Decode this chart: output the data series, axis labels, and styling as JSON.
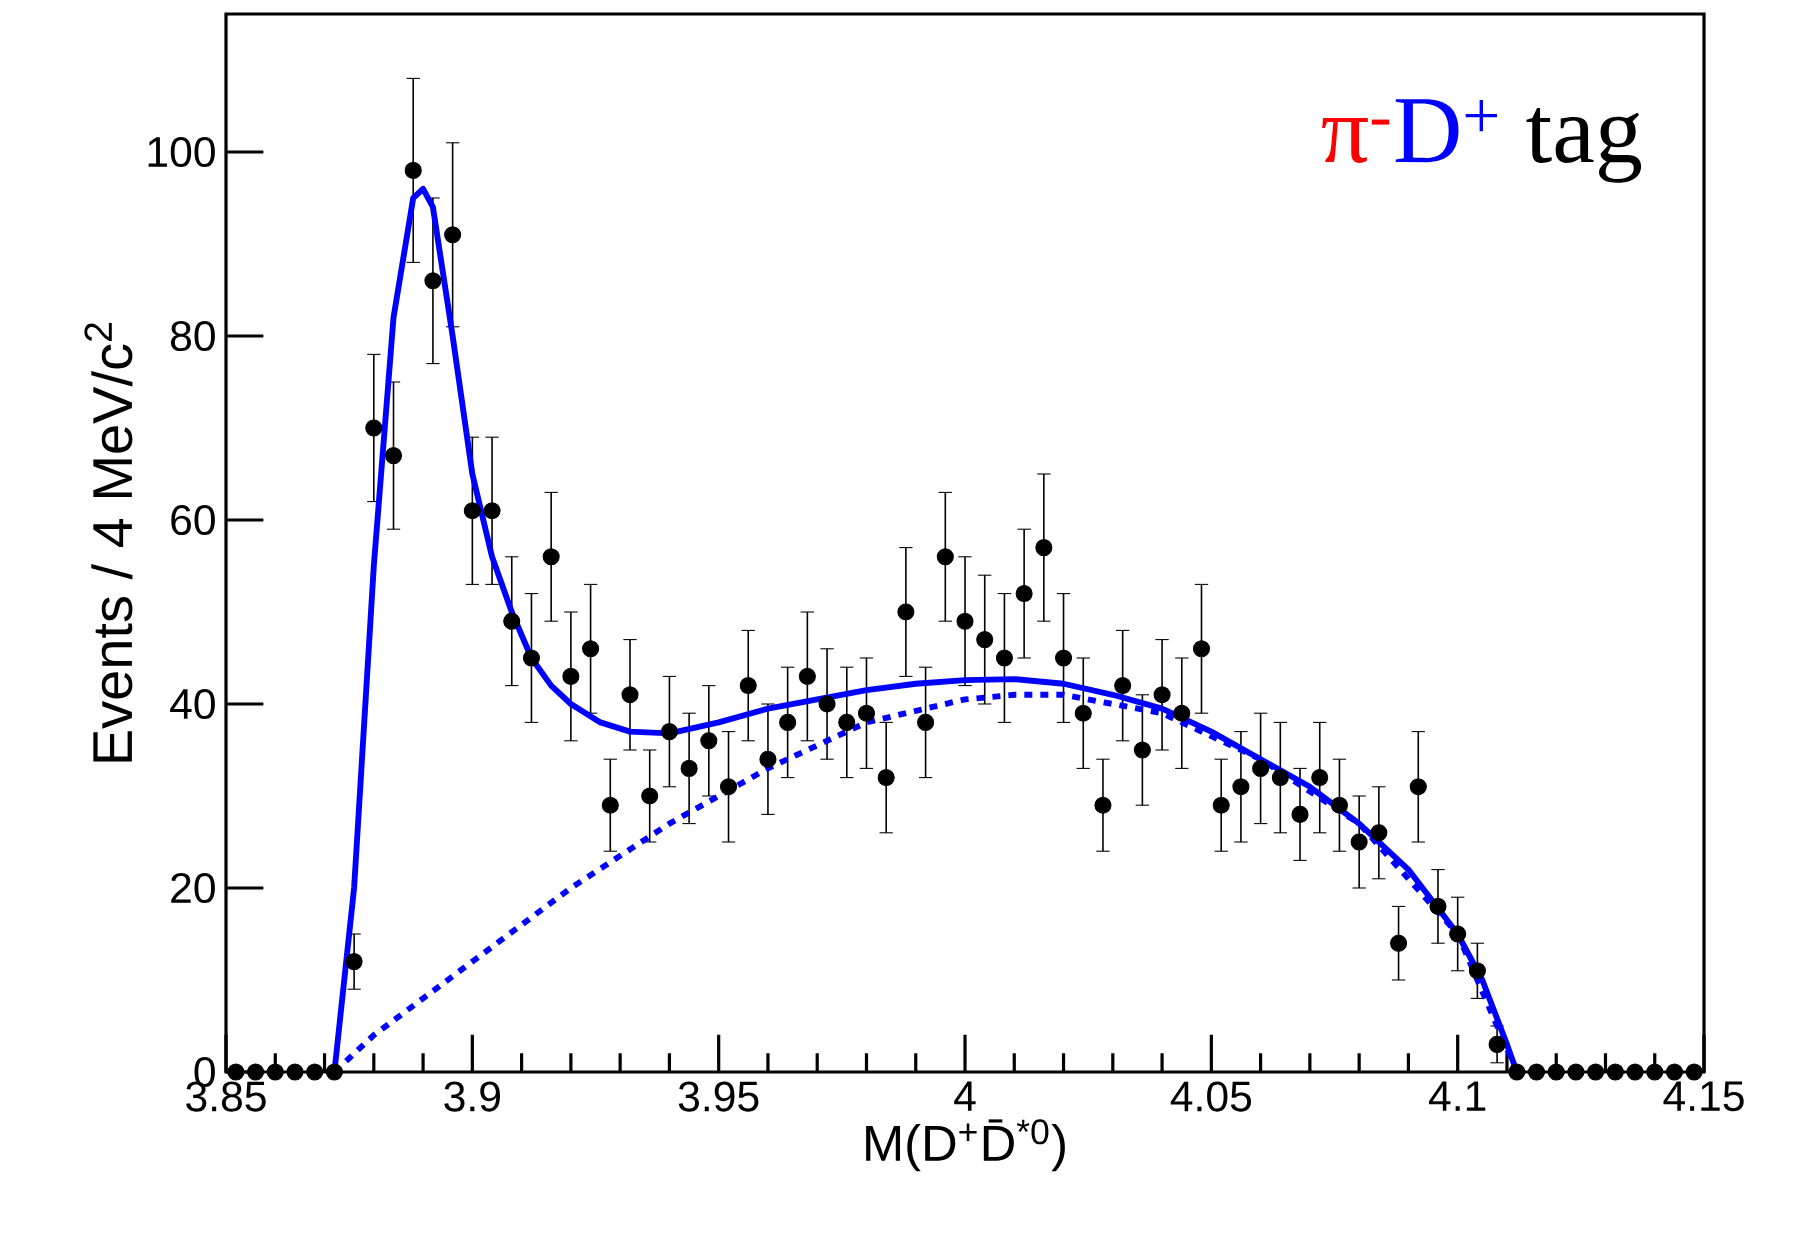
{
  "chart_data": {
    "type": "scatter",
    "xlabel": "M(D$^{+}$D̄$^{*0}$)",
    "ylabel": "Events / 4 MeV/c$^{2}$",
    "annotations": [
      "π$^{-}$",
      "D$^{+}$",
      " tag"
    ],
    "xlim": [
      3.85,
      4.15
    ],
    "ylim": [
      0,
      115
    ],
    "xticks": [
      3.85,
      3.9,
      3.95,
      4,
      4.05,
      4.1,
      4.15
    ],
    "yticks": [
      0,
      20,
      40,
      60,
      80,
      100
    ],
    "series": [
      {
        "type": "scatter",
        "marker": "circle",
        "color": "#000000",
        "x": [
          3.852,
          3.856,
          3.86,
          3.864,
          3.868,
          3.872,
          3.876,
          3.88,
          3.884,
          3.888,
          3.892,
          3.896,
          3.9,
          3.904,
          3.908,
          3.912,
          3.916,
          3.92,
          3.924,
          3.928,
          3.932,
          3.936,
          3.94,
          3.944,
          3.948,
          3.952,
          3.956,
          3.96,
          3.964,
          3.968,
          3.972,
          3.976,
          3.98,
          3.984,
          3.988,
          3.992,
          3.996,
          4.0,
          4.004,
          4.008,
          4.012,
          4.016,
          4.02,
          4.024,
          4.028,
          4.032,
          4.036,
          4.04,
          4.044,
          4.048,
          4.052,
          4.056,
          4.06,
          4.064,
          4.068,
          4.072,
          4.076,
          4.08,
          4.084,
          4.088,
          4.092,
          4.096,
          4.1,
          4.104,
          4.108,
          4.112,
          4.116,
          4.12,
          4.124,
          4.128,
          4.132,
          4.136,
          4.14,
          4.144,
          4.148
        ],
        "values": [
          0,
          0,
          0,
          0,
          0,
          0,
          12,
          70,
          67,
          98,
          86,
          91,
          61,
          61,
          49,
          45,
          56,
          43,
          46,
          29,
          41,
          30,
          37,
          33,
          36,
          31,
          42,
          34,
          38,
          43,
          40,
          38,
          39,
          32,
          50,
          38,
          56,
          49,
          47,
          45,
          52,
          57,
          45,
          39,
          29,
          42,
          35,
          41,
          39,
          46,
          29,
          31,
          33,
          32,
          28,
          32,
          29,
          25,
          26,
          14,
          31,
          18,
          15,
          11,
          3,
          0,
          0,
          0,
          0,
          0,
          0,
          0,
          0,
          0,
          0
        ],
        "errors": [
          null,
          null,
          null,
          null,
          null,
          null,
          3,
          8,
          8,
          10,
          9,
          10,
          8,
          8,
          7,
          7,
          7,
          7,
          7,
          5,
          6,
          5,
          6,
          6,
          6,
          6,
          6,
          6,
          6,
          7,
          6,
          6,
          6,
          6,
          7,
          6,
          7,
          7,
          7,
          7,
          7,
          8,
          7,
          6,
          5,
          6,
          6,
          6,
          6,
          7,
          5,
          6,
          6,
          6,
          5,
          6,
          5,
          5,
          5,
          4,
          6,
          4,
          4,
          3,
          2,
          null,
          null,
          null,
          null,
          null,
          null,
          null,
          null,
          null,
          null
        ]
      },
      {
        "type": "line",
        "marker": "none",
        "line_style": "solid",
        "color": "#0000ff",
        "x": [
          3.872,
          3.876,
          3.88,
          3.884,
          3.888,
          3.89,
          3.892,
          3.896,
          3.9,
          3.904,
          3.908,
          3.912,
          3.916,
          3.92,
          3.926,
          3.932,
          3.94,
          3.95,
          3.96,
          3.97,
          3.98,
          3.99,
          4.0,
          4.01,
          4.02,
          4.03,
          4.04,
          4.05,
          4.06,
          4.07,
          4.08,
          4.09,
          4.1,
          4.105,
          4.11,
          4.112
        ],
        "values": [
          0,
          20,
          55,
          82,
          95,
          96,
          94,
          80,
          65,
          56,
          50,
          45,
          42,
          40,
          38,
          37,
          36.8,
          38,
          39.5,
          40.5,
          41.5,
          42.2,
          42.6,
          42.7,
          42.2,
          41,
          39.5,
          37,
          34,
          31,
          27,
          22,
          15,
          10,
          3,
          0
        ]
      },
      {
        "type": "line",
        "marker": "none",
        "line_style": "dotted",
        "color": "#0000ff",
        "x": [
          3.872,
          3.88,
          3.9,
          3.92,
          3.94,
          3.96,
          3.98,
          4.0,
          4.01,
          4.02,
          4.04,
          4.06,
          4.08,
          4.1,
          4.112
        ],
        "values": [
          0,
          4,
          12,
          20,
          27,
          33,
          38,
          40.5,
          41,
          41,
          39,
          34,
          27,
          15,
          0
        ]
      }
    ]
  }
}
